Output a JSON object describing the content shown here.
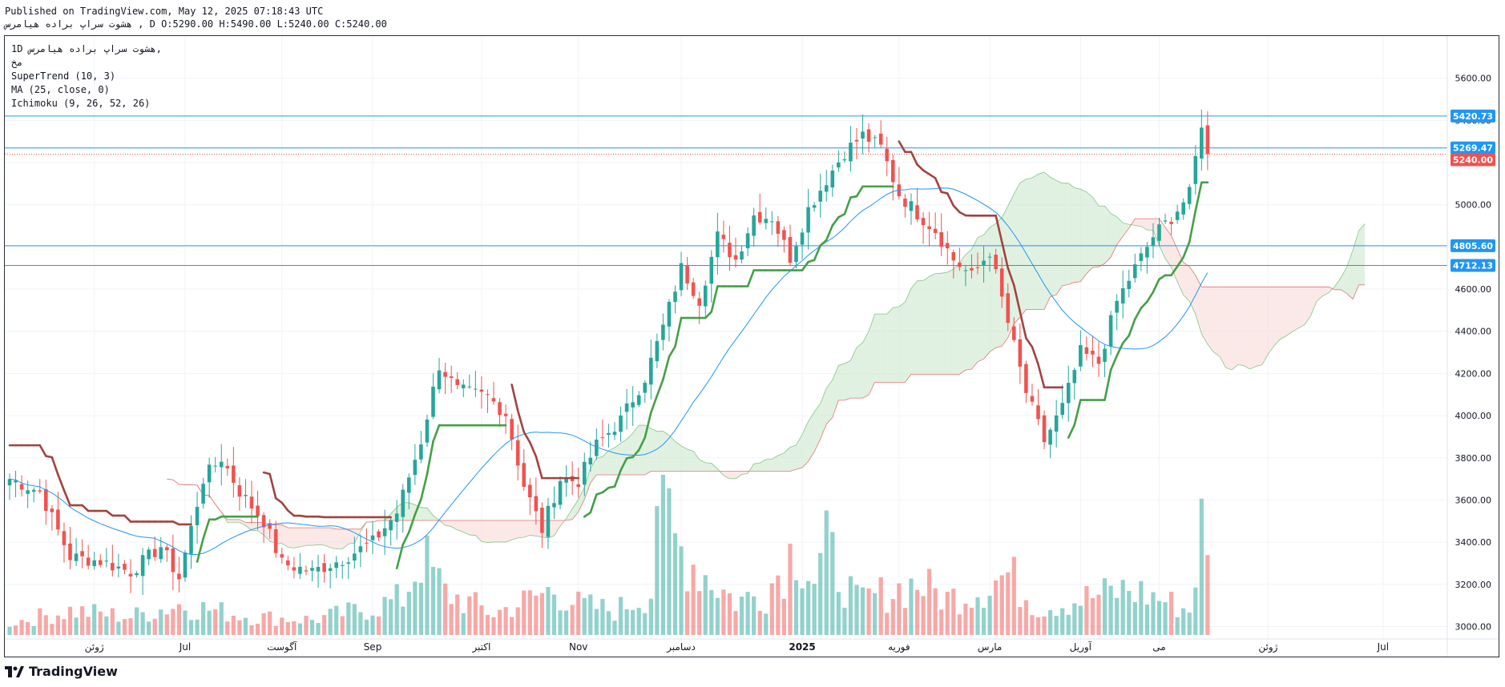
{
  "header": {
    "published": "Published on TradingView.com, May 12, 2025 07:18:43 UTC",
    "symbol_line": "هشوت سراپ براده هیامرس , D O:5290.00 H:5490.00 L:5240.00 C:5240.00"
  },
  "legend": {
    "line1": "1D  هشوت سراپ براده هیامرس,",
    "line2": "مخ",
    "supertrend": "SuperTrend (10, 3)",
    "ma": "MA (25, close, 0)",
    "ichimoku": "Ichimoku (9, 26, 52, 26)"
  },
  "footer": {
    "brand": "TradingView"
  },
  "colors": {
    "up": "#26a69a",
    "down": "#ef5350",
    "supertrend_up": "#43a047",
    "supertrend_down": "#a0443f",
    "ma": "#2196f3",
    "hline": "#2196f3",
    "cloud_green": "#c8e6c9",
    "cloud_red": "#f8d7d6"
  },
  "chart_data": {
    "type": "candlestick",
    "ylim": [
      2960,
      5800
    ],
    "y_ticks": [
      3000,
      3200,
      3400,
      3600,
      3800,
      4000,
      4200,
      4400,
      4600,
      4800,
      5000,
      5200,
      5400,
      5600
    ],
    "y_tick_labels": [
      "3000.00",
      "3200.00",
      "3400.00",
      "3600.00",
      "3800.00",
      "4000.00",
      "4200.00",
      "4400.00",
      "4600.00",
      "4800.00",
      "5000.00",
      "5200.00",
      "5400.00",
      "5600.00"
    ],
    "x_labels": [
      {
        "label": "ژوئن",
        "i": 14
      },
      {
        "label": "Jul",
        "i": 29
      },
      {
        "label": "آگوست",
        "i": 45
      },
      {
        "label": "Sep",
        "i": 60
      },
      {
        "label": "اکتبر",
        "i": 78
      },
      {
        "label": "Nov",
        "i": 94
      },
      {
        "label": "دسامبر",
        "i": 111
      },
      {
        "label": "2025",
        "i": 131
      },
      {
        "label": "فوریه",
        "i": 147
      },
      {
        "label": "مارس",
        "i": 162
      },
      {
        "label": "آوریل",
        "i": 177
      },
      {
        "label": "می",
        "i": 190
      },
      {
        "label": "ژوئن",
        "i": 208
      },
      {
        "label": "Jul",
        "i": 227
      }
    ],
    "horizontal_lines": [
      {
        "value": 5420.73,
        "label": "5420.73"
      },
      {
        "value": 5269.47,
        "label": "5269.47"
      },
      {
        "value": 4805.6,
        "label": "4805.60"
      },
      {
        "value": 4712.13,
        "label": "4712.13"
      }
    ],
    "last_price": {
      "value": 5240.0,
      "label": "5240.00"
    },
    "close_anchors": [
      [
        0,
        3700
      ],
      [
        5,
        3640
      ],
      [
        10,
        3330
      ],
      [
        15,
        3310
      ],
      [
        20,
        3260
      ],
      [
        25,
        3380
      ],
      [
        28,
        3230
      ],
      [
        32,
        3700
      ],
      [
        35,
        3800
      ],
      [
        38,
        3640
      ],
      [
        42,
        3500
      ],
      [
        45,
        3300
      ],
      [
        50,
        3260
      ],
      [
        55,
        3320
      ],
      [
        60,
        3400
      ],
      [
        64,
        3540
      ],
      [
        68,
        3880
      ],
      [
        71,
        4240
      ],
      [
        74,
        4120
      ],
      [
        79,
        4090
      ],
      [
        82,
        4010
      ],
      [
        85,
        3670
      ],
      [
        88,
        3460
      ],
      [
        91,
        3700
      ],
      [
        94,
        3690
      ],
      [
        97,
        3860
      ],
      [
        101,
        3980
      ],
      [
        105,
        4180
      ],
      [
        108,
        4420
      ],
      [
        111,
        4700
      ],
      [
        114,
        4550
      ],
      [
        117,
        4850
      ],
      [
        120,
        4740
      ],
      [
        123,
        4950
      ],
      [
        126,
        4940
      ],
      [
        129,
        4750
      ],
      [
        132,
        4980
      ],
      [
        135,
        5120
      ],
      [
        138,
        5250
      ],
      [
        141,
        5330
      ],
      [
        144,
        5270
      ],
      [
        147,
        5050
      ],
      [
        150,
        4960
      ],
      [
        153,
        4880
      ],
      [
        156,
        4740
      ],
      [
        159,
        4660
      ],
      [
        162,
        4780
      ],
      [
        165,
        4440
      ],
      [
        168,
        4110
      ],
      [
        171,
        3880
      ],
      [
        174,
        4040
      ],
      [
        177,
        4300
      ],
      [
        180,
        4250
      ],
      [
        183,
        4540
      ],
      [
        186,
        4700
      ],
      [
        189,
        4850
      ],
      [
        192,
        4940
      ],
      [
        195,
        5050
      ],
      [
        197,
        5390
      ],
      [
        198,
        5240
      ]
    ],
    "volume_anchors": [
      [
        0,
        40
      ],
      [
        10,
        80
      ],
      [
        20,
        60
      ],
      [
        28,
        100
      ],
      [
        40,
        60
      ],
      [
        50,
        50
      ],
      [
        55,
        70
      ],
      [
        60,
        90
      ],
      [
        65,
        120
      ],
      [
        68,
        260
      ],
      [
        72,
        140
      ],
      [
        80,
        70
      ],
      [
        90,
        150
      ],
      [
        94,
        100
      ],
      [
        100,
        80
      ],
      [
        106,
        140
      ],
      [
        107,
        500
      ],
      [
        110,
        300
      ],
      [
        115,
        200
      ],
      [
        120,
        110
      ],
      [
        125,
        140
      ],
      [
        130,
        300
      ],
      [
        133,
        180
      ],
      [
        135,
        280
      ],
      [
        140,
        110
      ],
      [
        150,
        170
      ],
      [
        155,
        120
      ],
      [
        160,
        150
      ],
      [
        165,
        200
      ],
      [
        170,
        90
      ],
      [
        175,
        110
      ],
      [
        180,
        130
      ],
      [
        185,
        150
      ],
      [
        190,
        120
      ],
      [
        195,
        80
      ],
      [
        197,
        350
      ],
      [
        198,
        220
      ]
    ]
  }
}
